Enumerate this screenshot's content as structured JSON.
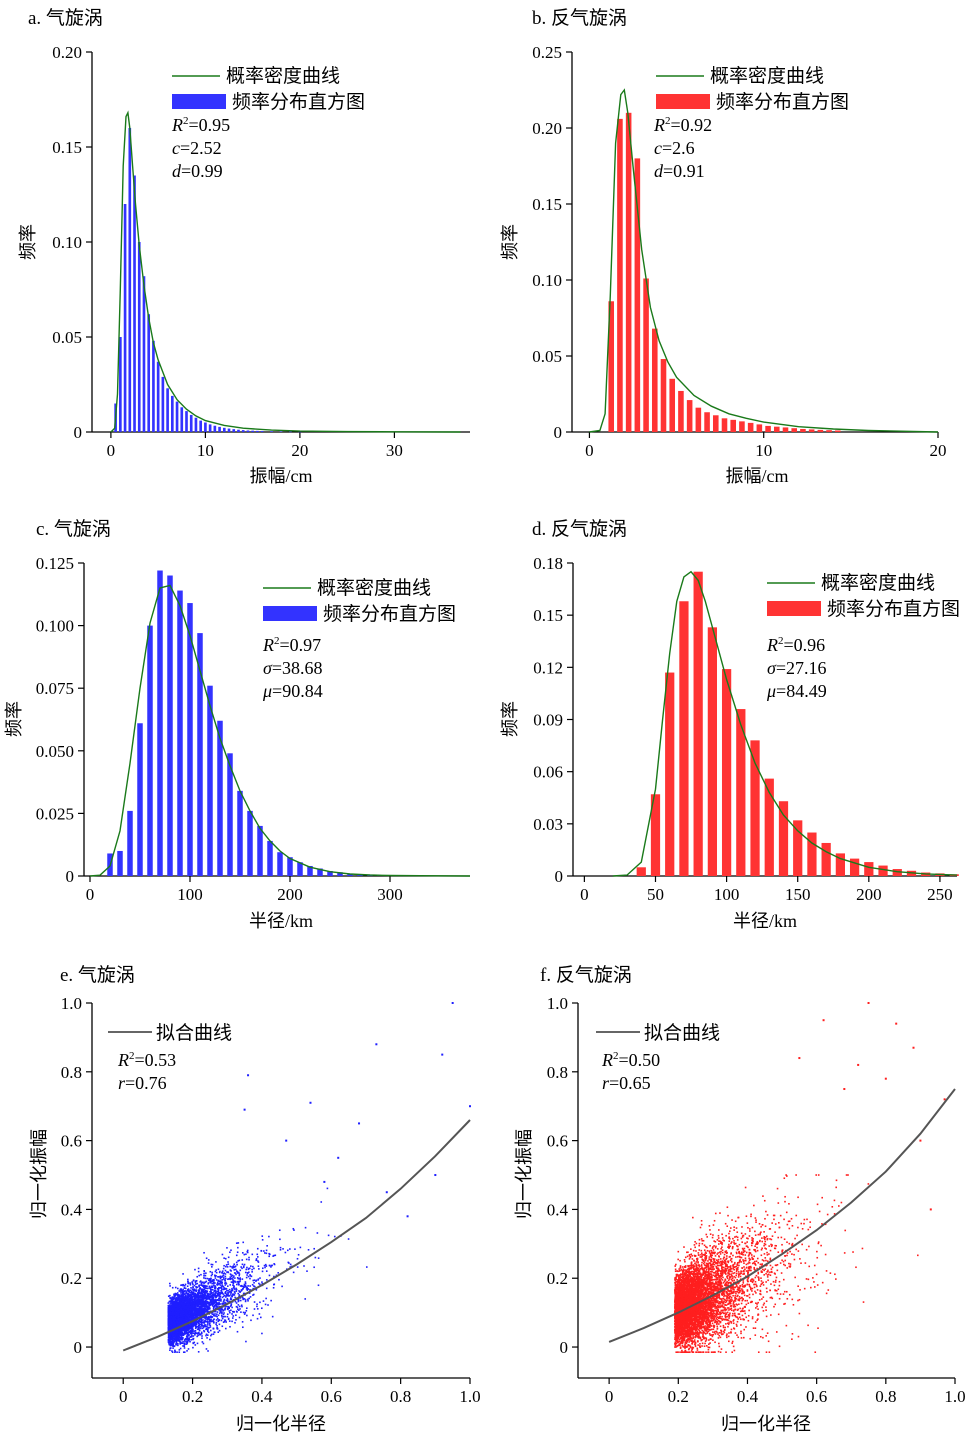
{
  "chart_data": [
    {
      "id": "a",
      "type": "bar",
      "title": "a. 气旋涡",
      "xlabel": "振幅/cm",
      "ylabel": "频率",
      "xlim": [
        -2,
        38
      ],
      "ylim": [
        0,
        0.2
      ],
      "xticks": [
        "0",
        "10",
        "20",
        "30"
      ],
      "xtick_values": [
        0,
        10,
        20,
        30
      ],
      "yticks": [
        "0",
        "0.05",
        "0.10",
        "0.15",
        "0.20"
      ],
      "ytick_values": [
        0,
        0.05,
        0.1,
        0.15,
        0.2
      ],
      "bar_color": "#3333ff",
      "curve_color": "#1a7a1a",
      "legend": [
        "概率密度曲线",
        "频率分布直方图"
      ],
      "stats": [
        {
          "sym": "R",
          "sup": "2",
          "val": "=0.95"
        },
        {
          "sym": "c",
          "sup": "",
          "val": "=2.52"
        },
        {
          "sym": "d",
          "sup": "",
          "val": "=0.99"
        }
      ],
      "bar_width": 0.28,
      "bars": {
        "x": [
          0.5,
          1.0,
          1.5,
          2.0,
          2.5,
          3.0,
          3.5,
          4.0,
          4.5,
          5.0,
          5.5,
          6.0,
          6.5,
          7.0,
          7.5,
          8.0,
          8.5,
          9.0,
          9.5,
          10.0,
          10.5,
          11.0,
          11.5,
          12.0,
          12.5,
          13.0,
          13.5,
          14.0,
          14.5,
          15.0,
          15.5,
          16.0,
          17.0,
          18.0,
          19.0,
          20.0
        ],
        "y": [
          0.015,
          0.05,
          0.12,
          0.16,
          0.135,
          0.1,
          0.082,
          0.062,
          0.048,
          0.037,
          0.029,
          0.023,
          0.019,
          0.016,
          0.013,
          0.011,
          0.009,
          0.0075,
          0.006,
          0.005,
          0.004,
          0.0033,
          0.0027,
          0.0022,
          0.0018,
          0.0015,
          0.0012,
          0.001,
          0.0008,
          0.0007,
          0.0006,
          0.0005,
          0.0004,
          0.0003,
          0.0002,
          0.0001
        ]
      },
      "curve": {
        "x": [
          0,
          0.4,
          0.7,
          1.0,
          1.3,
          1.6,
          1.8,
          2.0,
          2.3,
          2.6,
          3.0,
          3.5,
          4.0,
          4.5,
          5.0,
          6.0,
          7.0,
          8.0,
          9.0,
          10.0,
          12.0,
          14.0,
          17.0,
          20.0,
          25.0,
          30.0,
          37.0
        ],
        "y": [
          0,
          0.002,
          0.02,
          0.075,
          0.14,
          0.166,
          0.168,
          0.16,
          0.14,
          0.12,
          0.098,
          0.077,
          0.06,
          0.047,
          0.038,
          0.025,
          0.017,
          0.012,
          0.0085,
          0.006,
          0.0035,
          0.002,
          0.001,
          0.0005,
          0.0002,
          0.0001,
          0
        ]
      }
    },
    {
      "id": "b",
      "type": "bar",
      "title": "b. 反气旋涡",
      "xlabel": "振幅/cm",
      "ylabel": "频率",
      "xlim": [
        -1,
        20
      ],
      "ylim": [
        0,
        0.25
      ],
      "xticks": [
        "0",
        "10",
        "20"
      ],
      "xtick_values": [
        0,
        10,
        20
      ],
      "yticks": [
        "0",
        "0.05",
        "0.10",
        "0.15",
        "0.20",
        "0.25"
      ],
      "ytick_values": [
        0,
        0.05,
        0.1,
        0.15,
        0.2,
        0.25
      ],
      "bar_color": "#ff3333",
      "curve_color": "#1a7a1a",
      "legend": [
        "概率密度曲线",
        "频率分布直方图"
      ],
      "stats": [
        {
          "sym": "R",
          "sup": "2",
          "val": "=0.92"
        },
        {
          "sym": "c",
          "sup": "",
          "val": "=2.6"
        },
        {
          "sym": "d",
          "sup": "",
          "val": "=0.91"
        }
      ],
      "bar_width": 0.32,
      "bars": {
        "x": [
          1.25,
          1.75,
          2.25,
          2.75,
          3.25,
          3.75,
          4.25,
          4.75,
          5.25,
          5.75,
          6.25,
          6.75,
          7.25,
          7.75,
          8.25,
          8.75,
          9.25,
          9.75,
          10.25,
          10.75,
          11.25,
          11.75,
          12.25,
          12.75,
          13.25,
          13.75,
          14.25
        ],
        "y": [
          0.086,
          0.206,
          0.21,
          0.18,
          0.101,
          0.068,
          0.048,
          0.035,
          0.027,
          0.021,
          0.016,
          0.013,
          0.011,
          0.009,
          0.008,
          0.007,
          0.006,
          0.005,
          0.004,
          0.0035,
          0.003,
          0.0025,
          0.002,
          0.0017,
          0.0014,
          0.0012,
          0.001
        ]
      },
      "curve": {
        "x": [
          0,
          0.6,
          0.9,
          1.2,
          1.5,
          1.8,
          2.0,
          2.2,
          2.5,
          3.0,
          3.5,
          4.0,
          4.5,
          5.0,
          6.0,
          7.0,
          8.0,
          9.0,
          10.0,
          12.0,
          14.0,
          16.0,
          20.0
        ],
        "y": [
          0,
          0.001,
          0.012,
          0.09,
          0.19,
          0.222,
          0.225,
          0.21,
          0.175,
          0.12,
          0.082,
          0.06,
          0.046,
          0.036,
          0.024,
          0.017,
          0.012,
          0.009,
          0.0065,
          0.0035,
          0.002,
          0.001,
          0
        ]
      }
    },
    {
      "id": "c",
      "type": "bar",
      "title": "c. 气旋涡",
      "xlabel": "半径/km",
      "ylabel": "频率",
      "xlim": [
        -6,
        380
      ],
      "ylim": [
        0,
        0.125
      ],
      "xticks": [
        "0",
        "100",
        "200",
        "300"
      ],
      "xtick_values": [
        0,
        100,
        200,
        300
      ],
      "yticks": [
        "0",
        "0.025",
        "0.050",
        "0.075",
        "0.100",
        "0.125"
      ],
      "ytick_values": [
        0,
        0.025,
        0.05,
        0.075,
        0.1,
        0.125
      ],
      "bar_color": "#3333ff",
      "curve_color": "#1a7a1a",
      "legend": [
        "概率密度曲线",
        "频率分布直方图"
      ],
      "stats": [
        {
          "sym": "R",
          "sup": "2",
          "val": "=0.97"
        },
        {
          "sym": "σ",
          "sup": "",
          "val": "=38.68"
        },
        {
          "sym": "μ",
          "sup": "",
          "val": "=90.84"
        }
      ],
      "bar_width": 5.5,
      "bars": {
        "x": [
          20,
          30,
          40,
          50,
          60,
          70,
          80,
          90,
          100,
          110,
          120,
          130,
          140,
          150,
          160,
          170,
          180,
          190,
          200,
          210,
          220,
          230,
          240,
          250,
          260,
          270,
          280,
          290,
          300
        ],
        "y": [
          0.009,
          0.01,
          0.026,
          0.061,
          0.1,
          0.122,
          0.12,
          0.114,
          0.109,
          0.097,
          0.076,
          0.062,
          0.049,
          0.034,
          0.026,
          0.02,
          0.014,
          0.0095,
          0.0075,
          0.0055,
          0.004,
          0.003,
          0.002,
          0.0015,
          0.001,
          0.0008,
          0.0006,
          0.0004,
          0.0002
        ]
      },
      "curve": {
        "x": [
          0,
          10,
          20,
          30,
          40,
          50,
          60,
          70,
          80,
          90,
          100,
          110,
          120,
          130,
          140,
          150,
          160,
          170,
          180,
          190,
          200,
          220,
          240,
          260,
          280,
          300,
          330,
          380
        ],
        "y": [
          0,
          0.0003,
          0.004,
          0.018,
          0.045,
          0.075,
          0.101,
          0.115,
          0.116,
          0.108,
          0.096,
          0.082,
          0.068,
          0.055,
          0.044,
          0.034,
          0.026,
          0.019,
          0.014,
          0.01,
          0.007,
          0.0035,
          0.0017,
          0.0008,
          0.0004,
          0.0002,
          0.0001,
          0
        ]
      }
    },
    {
      "id": "d",
      "type": "bar",
      "title": "d. 反气旋涡",
      "xlabel": "半径/km",
      "ylabel": "频率",
      "xlim": [
        -8,
        262
      ],
      "ylim": [
        0,
        0.18
      ],
      "xticks": [
        "0",
        "50",
        "100",
        "150",
        "200",
        "250"
      ],
      "xtick_values": [
        0,
        50,
        100,
        150,
        200,
        250
      ],
      "yticks": [
        "0",
        "0.03",
        "0.06",
        "0.09",
        "0.12",
        "0.15",
        "0.18"
      ],
      "ytick_values": [
        0,
        0.03,
        0.06,
        0.09,
        0.12,
        0.15,
        0.18
      ],
      "bar_color": "#ff3333",
      "curve_color": "#1a7a1a",
      "legend": [
        "概率密度曲线",
        "频率分布直方图"
      ],
      "stats": [
        {
          "sym": "R",
          "sup": "2",
          "val": "=0.96"
        },
        {
          "sym": "σ",
          "sup": "",
          "val": "=27.16"
        },
        {
          "sym": "μ",
          "sup": "",
          "val": "=84.49"
        }
      ],
      "bar_width": 6.5,
      "bars": {
        "x": [
          40,
          50,
          60,
          70,
          80,
          90,
          100,
          110,
          120,
          130,
          140,
          150,
          160,
          170,
          180,
          190,
          200,
          210,
          220,
          230,
          240,
          250,
          260
        ],
        "y": [
          0.005,
          0.047,
          0.117,
          0.158,
          0.175,
          0.143,
          0.119,
          0.096,
          0.078,
          0.056,
          0.043,
          0.032,
          0.025,
          0.019,
          0.013,
          0.01,
          0.008,
          0.006,
          0.004,
          0.003,
          0.002,
          0.0015,
          0.001
        ]
      },
      "curve": {
        "x": [
          20,
          30,
          40,
          50,
          55,
          60,
          65,
          70,
          75,
          80,
          85,
          90,
          100,
          110,
          120,
          130,
          140,
          150,
          160,
          170,
          180,
          200,
          220,
          240,
          262
        ],
        "y": [
          0,
          0.0005,
          0.008,
          0.05,
          0.09,
          0.128,
          0.158,
          0.172,
          0.175,
          0.17,
          0.158,
          0.143,
          0.113,
          0.087,
          0.065,
          0.048,
          0.035,
          0.026,
          0.019,
          0.014,
          0.01,
          0.005,
          0.0025,
          0.0012,
          0.0005
        ]
      }
    },
    {
      "id": "e",
      "type": "scatter",
      "title": "e. 气旋涡",
      "xlabel": "归一化半径",
      "ylabel": "归一化振幅",
      "xlim": [
        -0.09,
        1.0
      ],
      "ylim": [
        -0.09,
        1.0
      ],
      "xticks": [
        "0",
        "0.2",
        "0.4",
        "0.6",
        "0.8",
        "1.0"
      ],
      "xtick_values": [
        0,
        0.2,
        0.4,
        0.6,
        0.8,
        1.0
      ],
      "yticks": [
        "0",
        "0.2",
        "0.4",
        "0.6",
        "0.8",
        "1.0"
      ],
      "ytick_values": [
        0,
        0.2,
        0.4,
        0.6,
        0.8,
        1.0
      ],
      "point_color": "#1f1fff",
      "fit_color": "#555555",
      "legend": [
        "拟合曲线"
      ],
      "stats": [
        {
          "sym": "R",
          "sup": "2",
          "val": "=0.53"
        },
        {
          "sym": "r",
          "sup": "",
          "val": "=0.76"
        }
      ],
      "fit": {
        "x": [
          0,
          0.1,
          0.2,
          0.3,
          0.4,
          0.5,
          0.6,
          0.7,
          0.8,
          0.9,
          1.0
        ],
        "y": [
          -0.01,
          0.03,
          0.075,
          0.125,
          0.18,
          0.24,
          0.305,
          0.375,
          0.46,
          0.555,
          0.66
        ]
      },
      "cloud": {
        "seed": 11,
        "count": 5200,
        "x_center": 0.13,
        "x_spread": 0.11,
        "slope": 0.5,
        "y_noise": 0.055
      },
      "outliers": {
        "x": [
          0.95,
          0.73,
          0.36,
          0.35,
          0.54,
          0.68,
          0.92,
          1.0,
          0.9,
          0.82,
          0.76,
          0.62,
          0.58,
          0.47
        ],
        "y": [
          1.0,
          0.88,
          0.79,
          0.69,
          0.71,
          0.65,
          0.85,
          0.7,
          0.5,
          0.38,
          0.45,
          0.55,
          0.48,
          0.6
        ]
      }
    },
    {
      "id": "f",
      "type": "scatter",
      "title": "f. 反气旋涡",
      "xlabel": "归一化半径",
      "ylabel": "归一化振幅",
      "xlim": [
        -0.09,
        1.0
      ],
      "ylim": [
        -0.09,
        1.0
      ],
      "xticks": [
        "0",
        "0.2",
        "0.4",
        "0.6",
        "0.8",
        "1.0"
      ],
      "xtick_values": [
        0,
        0.2,
        0.4,
        0.6,
        0.8,
        1.0
      ],
      "yticks": [
        "0",
        "0.2",
        "0.4",
        "0.6",
        "0.8",
        "1.0"
      ],
      "ytick_values": [
        0,
        0.2,
        0.4,
        0.6,
        0.8,
        1.0
      ],
      "point_color": "#ff1f1f",
      "fit_color": "#555555",
      "legend": [
        "拟合曲线"
      ],
      "stats": [
        {
          "sym": "R",
          "sup": "2",
          "val": "=0.50"
        },
        {
          "sym": "r",
          "sup": "",
          "val": "=0.65"
        }
      ],
      "fit": {
        "x": [
          0,
          0.1,
          0.2,
          0.3,
          0.4,
          0.5,
          0.6,
          0.7,
          0.8,
          0.9,
          1.0
        ],
        "y": [
          0.015,
          0.055,
          0.1,
          0.15,
          0.205,
          0.27,
          0.34,
          0.42,
          0.51,
          0.62,
          0.75
        ]
      },
      "cloud": {
        "seed": 29,
        "count": 6500,
        "x_center": 0.19,
        "x_spread": 0.13,
        "slope": 0.5,
        "y_noise": 0.075
      },
      "outliers": {
        "x": [
          0.75,
          0.62,
          0.83,
          0.88,
          0.97,
          0.9,
          0.8,
          0.72,
          0.68,
          0.55,
          0.93
        ],
        "y": [
          1.0,
          0.95,
          0.94,
          0.87,
          0.72,
          0.6,
          0.78,
          0.82,
          0.75,
          0.84,
          0.4
        ]
      }
    }
  ]
}
